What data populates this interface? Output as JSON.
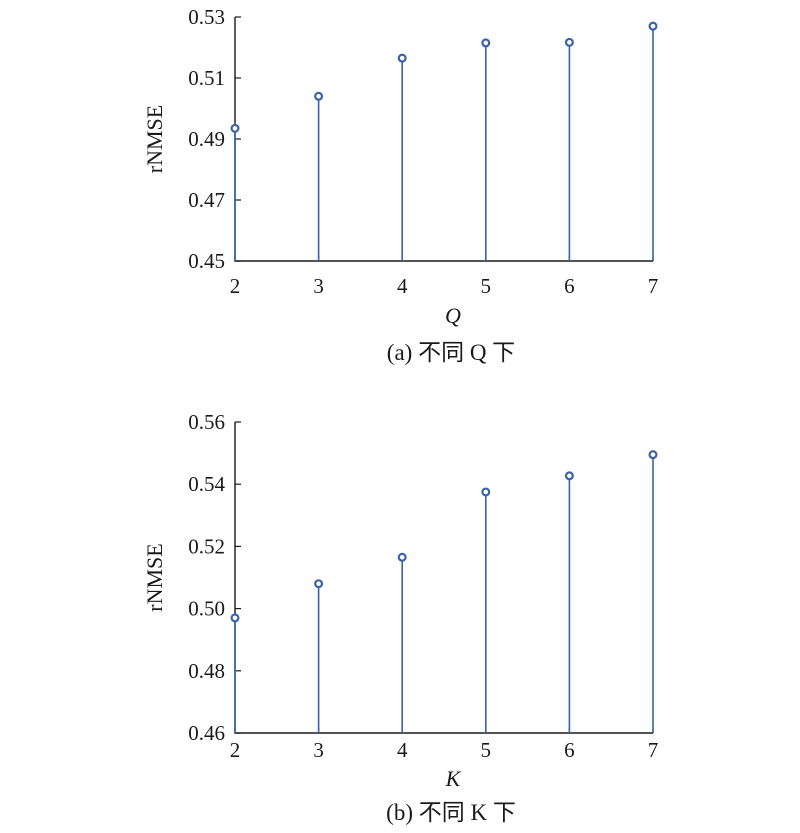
{
  "chart_data": [
    {
      "type": "stem",
      "x": [
        2,
        3,
        4,
        5,
        6,
        7
      ],
      "values": [
        0.4935,
        0.504,
        0.5165,
        0.5215,
        0.5217,
        0.527
      ],
      "xticks": [
        "2",
        "3",
        "4",
        "5",
        "6",
        "7"
      ],
      "yticks": [
        "0.45",
        "0.47",
        "0.49",
        "0.51",
        "0.53"
      ],
      "ylim": [
        0.45,
        0.53
      ],
      "xlim": [
        2,
        7
      ],
      "xlabel": "Q",
      "ylabel": "rNMSE",
      "caption": "(a) 不同 Q 下",
      "grid": false,
      "color": "#3a62a8"
    },
    {
      "type": "stem",
      "x": [
        2,
        3,
        4,
        5,
        6,
        7
      ],
      "values": [
        0.497,
        0.508,
        0.5165,
        0.5375,
        0.5427,
        0.5495
      ],
      "xticks": [
        "2",
        "3",
        "4",
        "5",
        "6",
        "7"
      ],
      "yticks": [
        "0.46",
        "0.48",
        "0.50",
        "0.52",
        "0.54",
        "0.56"
      ],
      "ylim": [
        0.46,
        0.56
      ],
      "xlim": [
        2,
        7
      ],
      "xlabel": "K",
      "ylabel": "rNMSE",
      "caption": "(b) 不同 K 下",
      "grid": false,
      "color": "#3a62a8"
    }
  ]
}
